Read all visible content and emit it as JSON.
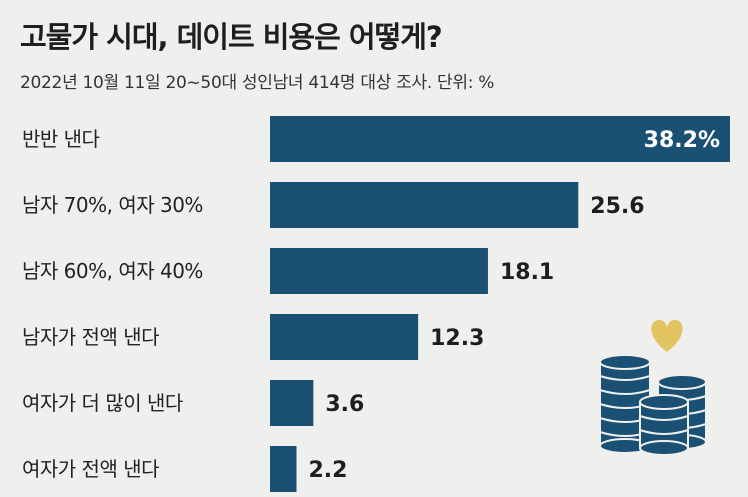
{
  "header": {
    "title": "고물가 시대, 데이트 비용은 어떻게?",
    "subtitle": "2022년 10월 11일 20~50대 성인남녀 414명 대상 조사. 단위: %"
  },
  "colors": {
    "bar": "#1a5073",
    "background": "#efefed",
    "heart": "#e2c462",
    "coin": "#1a5073"
  },
  "icons": [
    "heart-icon",
    "coin-stack-icon"
  ],
  "chart_data": {
    "type": "bar",
    "orientation": "horizontal",
    "title": "고물가 시대, 데이트 비용은 어떻게?",
    "subtitle": "2022년 10월 11일 20~50대 성인남녀 414명 대상 조사. 단위: %",
    "categories": [
      "반반 낸다",
      "남자 70%, 여자 30%",
      "남자 60%, 여자 40%",
      "남자가 전액 낸다",
      "여자가 더 많이 낸다",
      "여자가 전액 낸다"
    ],
    "values": [
      38.2,
      25.6,
      18.1,
      12.3,
      3.6,
      2.2
    ],
    "value_labels": [
      "38.2%",
      "25.6",
      "18.1",
      "12.3",
      "3.6",
      "2.2"
    ],
    "unit": "%",
    "xlim": [
      0,
      38.2
    ],
    "grid": false,
    "legend": "none"
  }
}
